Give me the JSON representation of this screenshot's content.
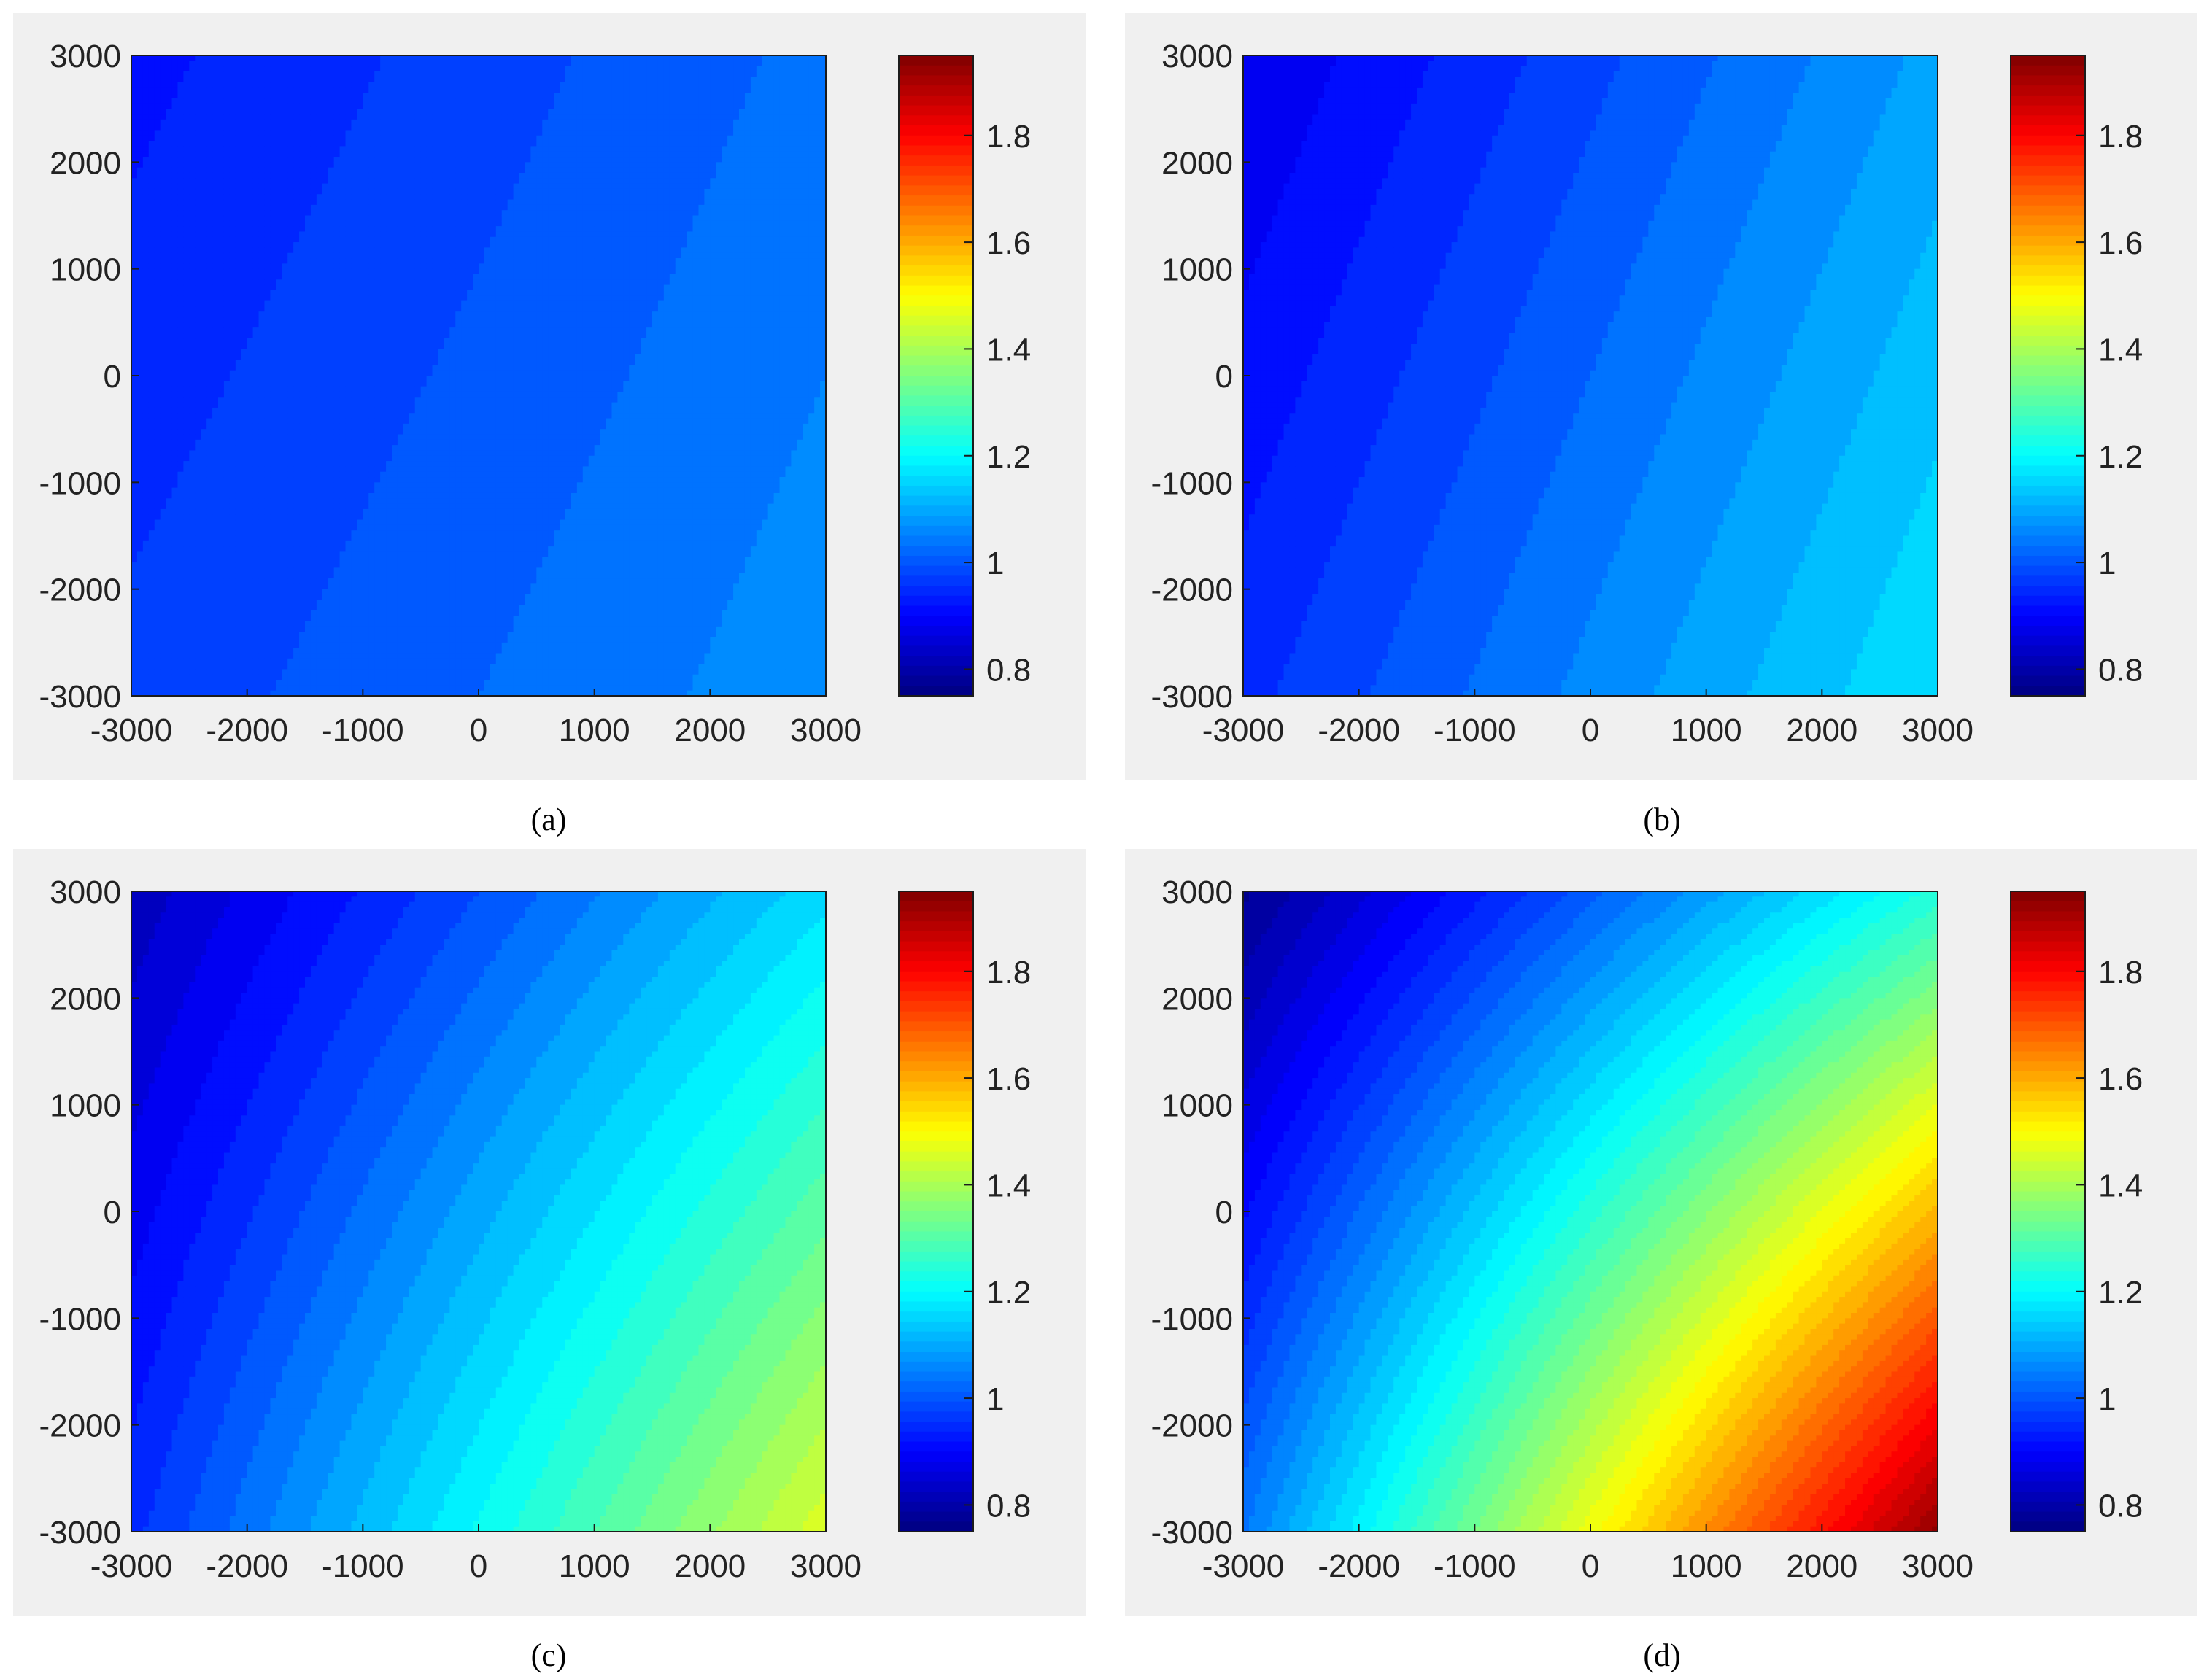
{
  "chart_data": [
    {
      "type": "heatmap",
      "caption": "(a)",
      "x_range": [
        -3000,
        3000
      ],
      "y_range": [
        -3000,
        3000
      ],
      "x_ticks": [
        -3000,
        -2000,
        -1000,
        0,
        1000,
        2000,
        3000
      ],
      "y_ticks": [
        -3000,
        -2000,
        -1000,
        0,
        1000,
        2000,
        3000
      ],
      "x_tick_labels": [
        "-3000",
        "-2000",
        "-1000",
        "0",
        "1000",
        "2000",
        "3000"
      ],
      "y_tick_labels": [
        "-3000",
        "-2000",
        "-1000",
        "0",
        "1000",
        "2000",
        "3000"
      ],
      "colorbar": {
        "range": [
          0.75,
          1.95
        ],
        "ticks": [
          0.8,
          1,
          1.2,
          1.4,
          1.6,
          1.8
        ],
        "tick_labels": [
          "0.8",
          "1",
          "1.2",
          "1.4",
          "1.6",
          "1.8"
        ],
        "colormap": "jet"
      },
      "field": {
        "corner_values": {
          "top_left": 0.92,
          "top_right": 1.03,
          "bottom_left": 0.97,
          "bottom_right": 1.07
        },
        "contour_levels": 40
      }
    },
    {
      "type": "heatmap",
      "caption": "(b)",
      "x_range": [
        -3000,
        3000
      ],
      "y_range": [
        -3000,
        3000
      ],
      "x_ticks": [
        -3000,
        -2000,
        -1000,
        0,
        1000,
        2000,
        3000
      ],
      "y_ticks": [
        -3000,
        -2000,
        -1000,
        0,
        1000,
        2000,
        3000
      ],
      "x_tick_labels": [
        "-3000",
        "-2000",
        "-1000",
        "0",
        "1000",
        "2000",
        "3000"
      ],
      "y_tick_labels": [
        "-3000",
        "-2000",
        "-1000",
        "0",
        "1000",
        "2000",
        "3000"
      ],
      "colorbar": {
        "range": [
          0.75,
          1.95
        ],
        "ticks": [
          0.8,
          1,
          1.2,
          1.4,
          1.6,
          1.8
        ],
        "tick_labels": [
          "0.8",
          "1",
          "1.2",
          "1.4",
          "1.6",
          "1.8"
        ],
        "colormap": "jet"
      },
      "field": {
        "corner_values": {
          "top_left": 0.87,
          "top_right": 1.09,
          "bottom_left": 0.95,
          "bottom_right": 1.17
        },
        "contour_levels": 40
      }
    },
    {
      "type": "heatmap",
      "caption": "(c)",
      "x_range": [
        -3000,
        3000
      ],
      "y_range": [
        -3000,
        3000
      ],
      "x_ticks": [
        -3000,
        -2000,
        -1000,
        0,
        1000,
        2000,
        3000
      ],
      "y_ticks": [
        -3000,
        -2000,
        -1000,
        0,
        1000,
        2000,
        3000
      ],
      "x_tick_labels": [
        "-3000",
        "-2000",
        "-1000",
        "0",
        "1000",
        "2000",
        "3000"
      ],
      "y_tick_labels": [
        "-3000",
        "-2000",
        "-1000",
        "0",
        "1000",
        "2000",
        "3000"
      ],
      "colorbar": {
        "range": [
          0.75,
          1.95
        ],
        "ticks": [
          0.8,
          1,
          1.2,
          1.4,
          1.6,
          1.8
        ],
        "tick_labels": [
          "0.8",
          "1",
          "1.2",
          "1.4",
          "1.6",
          "1.8"
        ],
        "colormap": "jet"
      },
      "field": {
        "corner_values": {
          "top_left": 0.82,
          "top_right": 1.16,
          "bottom_left": 0.95,
          "bottom_right": 1.46
        },
        "contour_levels": 40
      }
    },
    {
      "type": "heatmap",
      "caption": "(d)",
      "x_range": [
        -3000,
        3000
      ],
      "y_range": [
        -3000,
        3000
      ],
      "x_ticks": [
        -3000,
        -2000,
        -1000,
        0,
        1000,
        2000,
        3000
      ],
      "y_ticks": [
        -3000,
        -2000,
        -1000,
        0,
        1000,
        2000,
        3000
      ],
      "x_tick_labels": [
        "-3000",
        "-2000",
        "-1000",
        "0",
        "1000",
        "2000",
        "3000"
      ],
      "y_tick_labels": [
        "-3000",
        "-2000",
        "-1000",
        "0",
        "1000",
        "2000",
        "3000"
      ],
      "colorbar": {
        "range": [
          0.75,
          1.95
        ],
        "ticks": [
          0.8,
          1,
          1.2,
          1.4,
          1.6,
          1.8
        ],
        "tick_labels": [
          "0.8",
          "1",
          "1.2",
          "1.4",
          "1.6",
          "1.8"
        ],
        "colormap": "jet"
      },
      "field": {
        "corner_values": {
          "top_left": 0.77,
          "top_right": 1.24,
          "bottom_left": 1.04,
          "bottom_right": 1.93
        },
        "contour_levels": 45
      }
    }
  ]
}
